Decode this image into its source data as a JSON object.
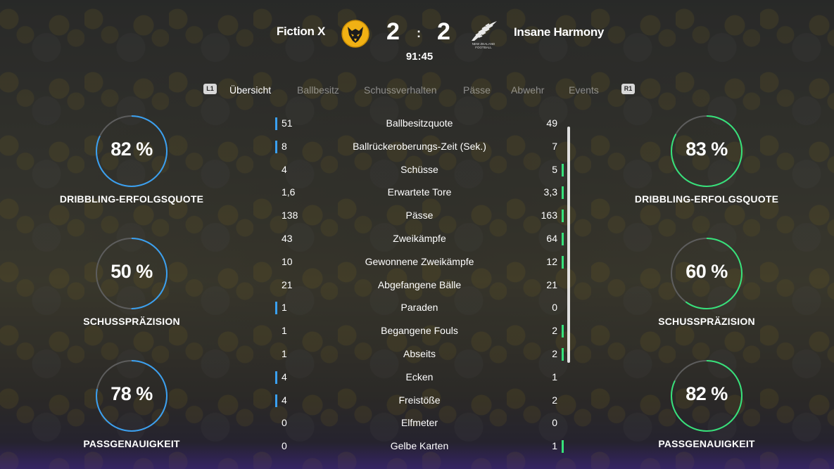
{
  "header": {
    "home_team": "Fiction X",
    "away_team": "Insane Harmony",
    "home_score": "2",
    "away_score": "2",
    "separator": ":",
    "clock": "91:45",
    "away_crest_text": "NEW ZEALAND FOOTBALL"
  },
  "tabs": {
    "left_button": "L1",
    "right_button": "R1",
    "items": [
      "Übersicht",
      "Ballbesitz",
      "Schussverhalten",
      "Pässe",
      "Abwehr",
      "Events"
    ],
    "active": "Übersicht"
  },
  "stats": [
    {
      "name": "Ballbesitzquote",
      "home": "51",
      "away": "49",
      "leader": "home"
    },
    {
      "name": "Ballrückeroberungs-Zeit (Sek.)",
      "home": "8",
      "away": "7",
      "leader": "home"
    },
    {
      "name": "Schüsse",
      "home": "4",
      "away": "5",
      "leader": "away"
    },
    {
      "name": "Erwartete Tore",
      "home": "1,6",
      "away": "3,3",
      "leader": "away"
    },
    {
      "name": "Pässe",
      "home": "138",
      "away": "163",
      "leader": "away"
    },
    {
      "name": "Zweikämpfe",
      "home": "43",
      "away": "64",
      "leader": "away"
    },
    {
      "name": "Gewonnene Zweikämpfe",
      "home": "10",
      "away": "12",
      "leader": "away"
    },
    {
      "name": "Abgefangene Bälle",
      "home": "21",
      "away": "21",
      "leader": "none"
    },
    {
      "name": "Paraden",
      "home": "1",
      "away": "0",
      "leader": "home"
    },
    {
      "name": "Begangene Fouls",
      "home": "1",
      "away": "2",
      "leader": "away"
    },
    {
      "name": "Abseits",
      "home": "1",
      "away": "2",
      "leader": "away"
    },
    {
      "name": "Ecken",
      "home": "4",
      "away": "1",
      "leader": "home"
    },
    {
      "name": "Freistöße",
      "home": "4",
      "away": "2",
      "leader": "home"
    },
    {
      "name": "Elfmeter",
      "home": "0",
      "away": "0",
      "leader": "none"
    },
    {
      "name": "Gelbe Karten",
      "home": "0",
      "away": "1",
      "leader": "away"
    }
  ],
  "gauges": {
    "home": [
      {
        "label": "DRIBBLING-ERFOLGSQUOTE",
        "text": "82 %",
        "value": 82
      },
      {
        "label": "SCHUSSPRÄZISION",
        "text": "50 %",
        "value": 50
      },
      {
        "label": "PASSGENAUIGKEIT",
        "text": "78 %",
        "value": 78
      }
    ],
    "away": [
      {
        "label": "DRIBBLING-ERFOLGSQUOTE",
        "text": "83 %",
        "value": 83
      },
      {
        "label": "SCHUSSPRÄZISION",
        "text": "60 %",
        "value": 60
      },
      {
        "label": "PASSGENAUIGKEIT",
        "text": "82 %",
        "value": 82
      }
    ]
  },
  "colors": {
    "home_accent": "#3aa0f0",
    "away_accent": "#36e27a",
    "gauge_track": "#5d5d5d"
  },
  "icons": {
    "home_crest": "wolf-head-crest-icon",
    "away_crest": "silver-fern-crest-icon"
  }
}
